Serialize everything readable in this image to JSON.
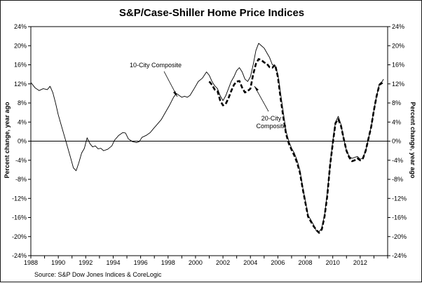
{
  "chart_data": {
    "type": "line",
    "title": "S&P/Case-Shiller Home Price Indices",
    "ylabel_left": "Percent change, year ago",
    "ylabel_right": "Percent change, year ago",
    "source": "Source: S&P Dow Jones Indices & CoreLogic",
    "xlim": [
      1988,
      2014
    ],
    "ylim": [
      -24,
      24
    ],
    "x_ticks": [
      "1988",
      "1990",
      "1992",
      "1994",
      "1996",
      "1998",
      "2000",
      "2002",
      "2004",
      "2006",
      "2008",
      "2010",
      "2012"
    ],
    "y_ticks": [
      "24%",
      "20%",
      "16%",
      "12%",
      "8%",
      "4%",
      "0%",
      "-4%",
      "-8%",
      "-12%",
      "-16%",
      "-20%",
      "-24%"
    ],
    "y_tick_values": [
      24,
      20,
      16,
      12,
      8,
      4,
      0,
      -4,
      -8,
      -12,
      -16,
      -20,
      -24
    ],
    "annotations": [
      {
        "text": "10-City Composite"
      },
      {
        "text_lines": [
          "20-City",
          "Composite"
        ]
      }
    ],
    "series": [
      {
        "name": "10-City Composite",
        "style": "solid",
        "points": [
          [
            1988.0,
            12.3
          ],
          [
            1988.3,
            11.2
          ],
          [
            1988.6,
            10.6
          ],
          [
            1988.9,
            11.0
          ],
          [
            1989.2,
            10.8
          ],
          [
            1989.4,
            11.5
          ],
          [
            1989.6,
            10.2
          ],
          [
            1989.8,
            8.0
          ],
          [
            1990.0,
            5.5
          ],
          [
            1990.3,
            2.5
          ],
          [
            1990.6,
            -0.5
          ],
          [
            1990.9,
            -3.5
          ],
          [
            1991.1,
            -5.6
          ],
          [
            1991.3,
            -6.2
          ],
          [
            1991.5,
            -4.5
          ],
          [
            1991.7,
            -2.5
          ],
          [
            1991.9,
            -1.5
          ],
          [
            1992.1,
            0.7
          ],
          [
            1992.3,
            -0.5
          ],
          [
            1992.5,
            -1.2
          ],
          [
            1992.7,
            -1.0
          ],
          [
            1992.9,
            -1.6
          ],
          [
            1993.1,
            -1.5
          ],
          [
            1993.3,
            -2.0
          ],
          [
            1993.6,
            -1.7
          ],
          [
            1993.9,
            -1.0
          ],
          [
            1994.1,
            0.2
          ],
          [
            1994.4,
            1.2
          ],
          [
            1994.7,
            1.8
          ],
          [
            1994.9,
            1.7
          ],
          [
            1995.1,
            0.5
          ],
          [
            1995.4,
            -0.1
          ],
          [
            1995.7,
            -0.3
          ],
          [
            1995.9,
            -0.1
          ],
          [
            1996.1,
            0.8
          ],
          [
            1996.4,
            1.2
          ],
          [
            1996.7,
            1.8
          ],
          [
            1996.9,
            2.5
          ],
          [
            1997.2,
            3.5
          ],
          [
            1997.5,
            4.5
          ],
          [
            1997.8,
            6.0
          ],
          [
            1998.1,
            7.5
          ],
          [
            1998.4,
            9.2
          ],
          [
            1998.6,
            10.0
          ],
          [
            1998.8,
            9.6
          ],
          [
            1999.0,
            9.2
          ],
          [
            1999.2,
            9.4
          ],
          [
            1999.4,
            9.2
          ],
          [
            1999.6,
            9.6
          ],
          [
            1999.9,
            11.0
          ],
          [
            2000.2,
            12.5
          ],
          [
            2000.5,
            13.2
          ],
          [
            2000.8,
            14.5
          ],
          [
            2001.0,
            13.8
          ],
          [
            2001.2,
            12.5
          ],
          [
            2001.4,
            11.6
          ],
          [
            2001.6,
            11.0
          ],
          [
            2001.8,
            9.5
          ],
          [
            2002.0,
            8.5
          ],
          [
            2002.2,
            9.5
          ],
          [
            2002.4,
            11.0
          ],
          [
            2002.6,
            12.5
          ],
          [
            2002.8,
            13.5
          ],
          [
            2003.0,
            14.8
          ],
          [
            2003.2,
            15.4
          ],
          [
            2003.4,
            14.5
          ],
          [
            2003.6,
            13.0
          ],
          [
            2003.8,
            12.5
          ],
          [
            2004.0,
            13.5
          ],
          [
            2004.2,
            16.0
          ],
          [
            2004.4,
            19.0
          ],
          [
            2004.6,
            20.5
          ],
          [
            2004.8,
            20.0
          ],
          [
            2005.0,
            19.5
          ],
          [
            2005.2,
            18.5
          ],
          [
            2005.4,
            17.5
          ],
          [
            2005.6,
            16.0
          ],
          [
            2005.8,
            15.8
          ],
          [
            2006.0,
            14.0
          ],
          [
            2006.2,
            10.0
          ],
          [
            2006.4,
            6.0
          ],
          [
            2006.6,
            2.0
          ],
          [
            2006.8,
            0.0
          ],
          [
            2007.0,
            -1.5
          ],
          [
            2007.2,
            -2.5
          ],
          [
            2007.4,
            -4.0
          ],
          [
            2007.6,
            -6.0
          ],
          [
            2007.8,
            -9.5
          ],
          [
            2008.0,
            -12.5
          ],
          [
            2008.2,
            -15.5
          ],
          [
            2008.4,
            -16.5
          ],
          [
            2008.6,
            -17.5
          ],
          [
            2008.8,
            -18.8
          ],
          [
            2009.0,
            -19.0
          ],
          [
            2009.2,
            -18.2
          ],
          [
            2009.4,
            -15.5
          ],
          [
            2009.6,
            -11.0
          ],
          [
            2009.8,
            -5.0
          ],
          [
            2010.0,
            0.0
          ],
          [
            2010.2,
            4.0
          ],
          [
            2010.4,
            5.2
          ],
          [
            2010.6,
            3.5
          ],
          [
            2010.8,
            0.5
          ],
          [
            2011.0,
            -2.0
          ],
          [
            2011.2,
            -3.2
          ],
          [
            2011.4,
            -3.6
          ],
          [
            2011.6,
            -3.4
          ],
          [
            2011.8,
            -3.2
          ],
          [
            2012.0,
            -3.8
          ],
          [
            2012.2,
            -3.5
          ],
          [
            2012.4,
            -2.0
          ],
          [
            2012.6,
            0.5
          ],
          [
            2012.8,
            3.0
          ],
          [
            2013.0,
            6.5
          ],
          [
            2013.2,
            9.5
          ],
          [
            2013.4,
            12.0
          ],
          [
            2013.6,
            12.5
          ],
          [
            2013.7,
            13.0
          ]
        ]
      },
      {
        "name": "20-City Composite",
        "style": "dashed",
        "points": [
          [
            2001.0,
            12.5
          ],
          [
            2001.2,
            11.8
          ],
          [
            2001.4,
            10.8
          ],
          [
            2001.6,
            10.5
          ],
          [
            2001.8,
            8.5
          ],
          [
            2002.0,
            7.5
          ],
          [
            2002.2,
            7.8
          ],
          [
            2002.4,
            9.0
          ],
          [
            2002.6,
            10.5
          ],
          [
            2002.8,
            11.8
          ],
          [
            2003.0,
            12.5
          ],
          [
            2003.2,
            12.6
          ],
          [
            2003.4,
            11.2
          ],
          [
            2003.6,
            10.2
          ],
          [
            2003.8,
            10.5
          ],
          [
            2004.0,
            11.0
          ],
          [
            2004.2,
            14.0
          ],
          [
            2004.4,
            16.2
          ],
          [
            2004.6,
            17.2
          ],
          [
            2004.8,
            17.0
          ],
          [
            2005.0,
            16.5
          ],
          [
            2005.2,
            16.2
          ],
          [
            2005.4,
            15.5
          ],
          [
            2005.6,
            15.4
          ],
          [
            2005.8,
            16.0
          ],
          [
            2006.0,
            13.5
          ],
          [
            2006.2,
            9.0
          ],
          [
            2006.4,
            5.0
          ],
          [
            2006.6,
            1.5
          ],
          [
            2006.8,
            -0.5
          ],
          [
            2007.0,
            -1.8
          ],
          [
            2007.2,
            -3.0
          ],
          [
            2007.4,
            -4.5
          ],
          [
            2007.6,
            -6.5
          ],
          [
            2007.8,
            -9.8
          ],
          [
            2008.0,
            -12.8
          ],
          [
            2008.2,
            -15.8
          ],
          [
            2008.4,
            -16.8
          ],
          [
            2008.6,
            -17.8
          ],
          [
            2008.8,
            -18.6
          ],
          [
            2009.0,
            -19.2
          ],
          [
            2009.2,
            -18.5
          ],
          [
            2009.4,
            -15.8
          ],
          [
            2009.6,
            -11.5
          ],
          [
            2009.8,
            -5.2
          ],
          [
            2010.0,
            -0.5
          ],
          [
            2010.2,
            3.8
          ],
          [
            2010.4,
            4.6
          ],
          [
            2010.6,
            3.2
          ],
          [
            2010.8,
            0.5
          ],
          [
            2011.0,
            -2.0
          ],
          [
            2011.2,
            -3.4
          ],
          [
            2011.4,
            -4.2
          ],
          [
            2011.6,
            -4.0
          ],
          [
            2011.8,
            -3.6
          ],
          [
            2012.0,
            -4.0
          ],
          [
            2012.2,
            -3.6
          ],
          [
            2012.4,
            -2.0
          ],
          [
            2012.6,
            0.5
          ],
          [
            2012.8,
            3.0
          ],
          [
            2013.0,
            6.5
          ],
          [
            2013.2,
            9.5
          ],
          [
            2013.4,
            11.8
          ],
          [
            2013.6,
            12.2
          ],
          [
            2013.7,
            12.6
          ]
        ]
      }
    ]
  }
}
